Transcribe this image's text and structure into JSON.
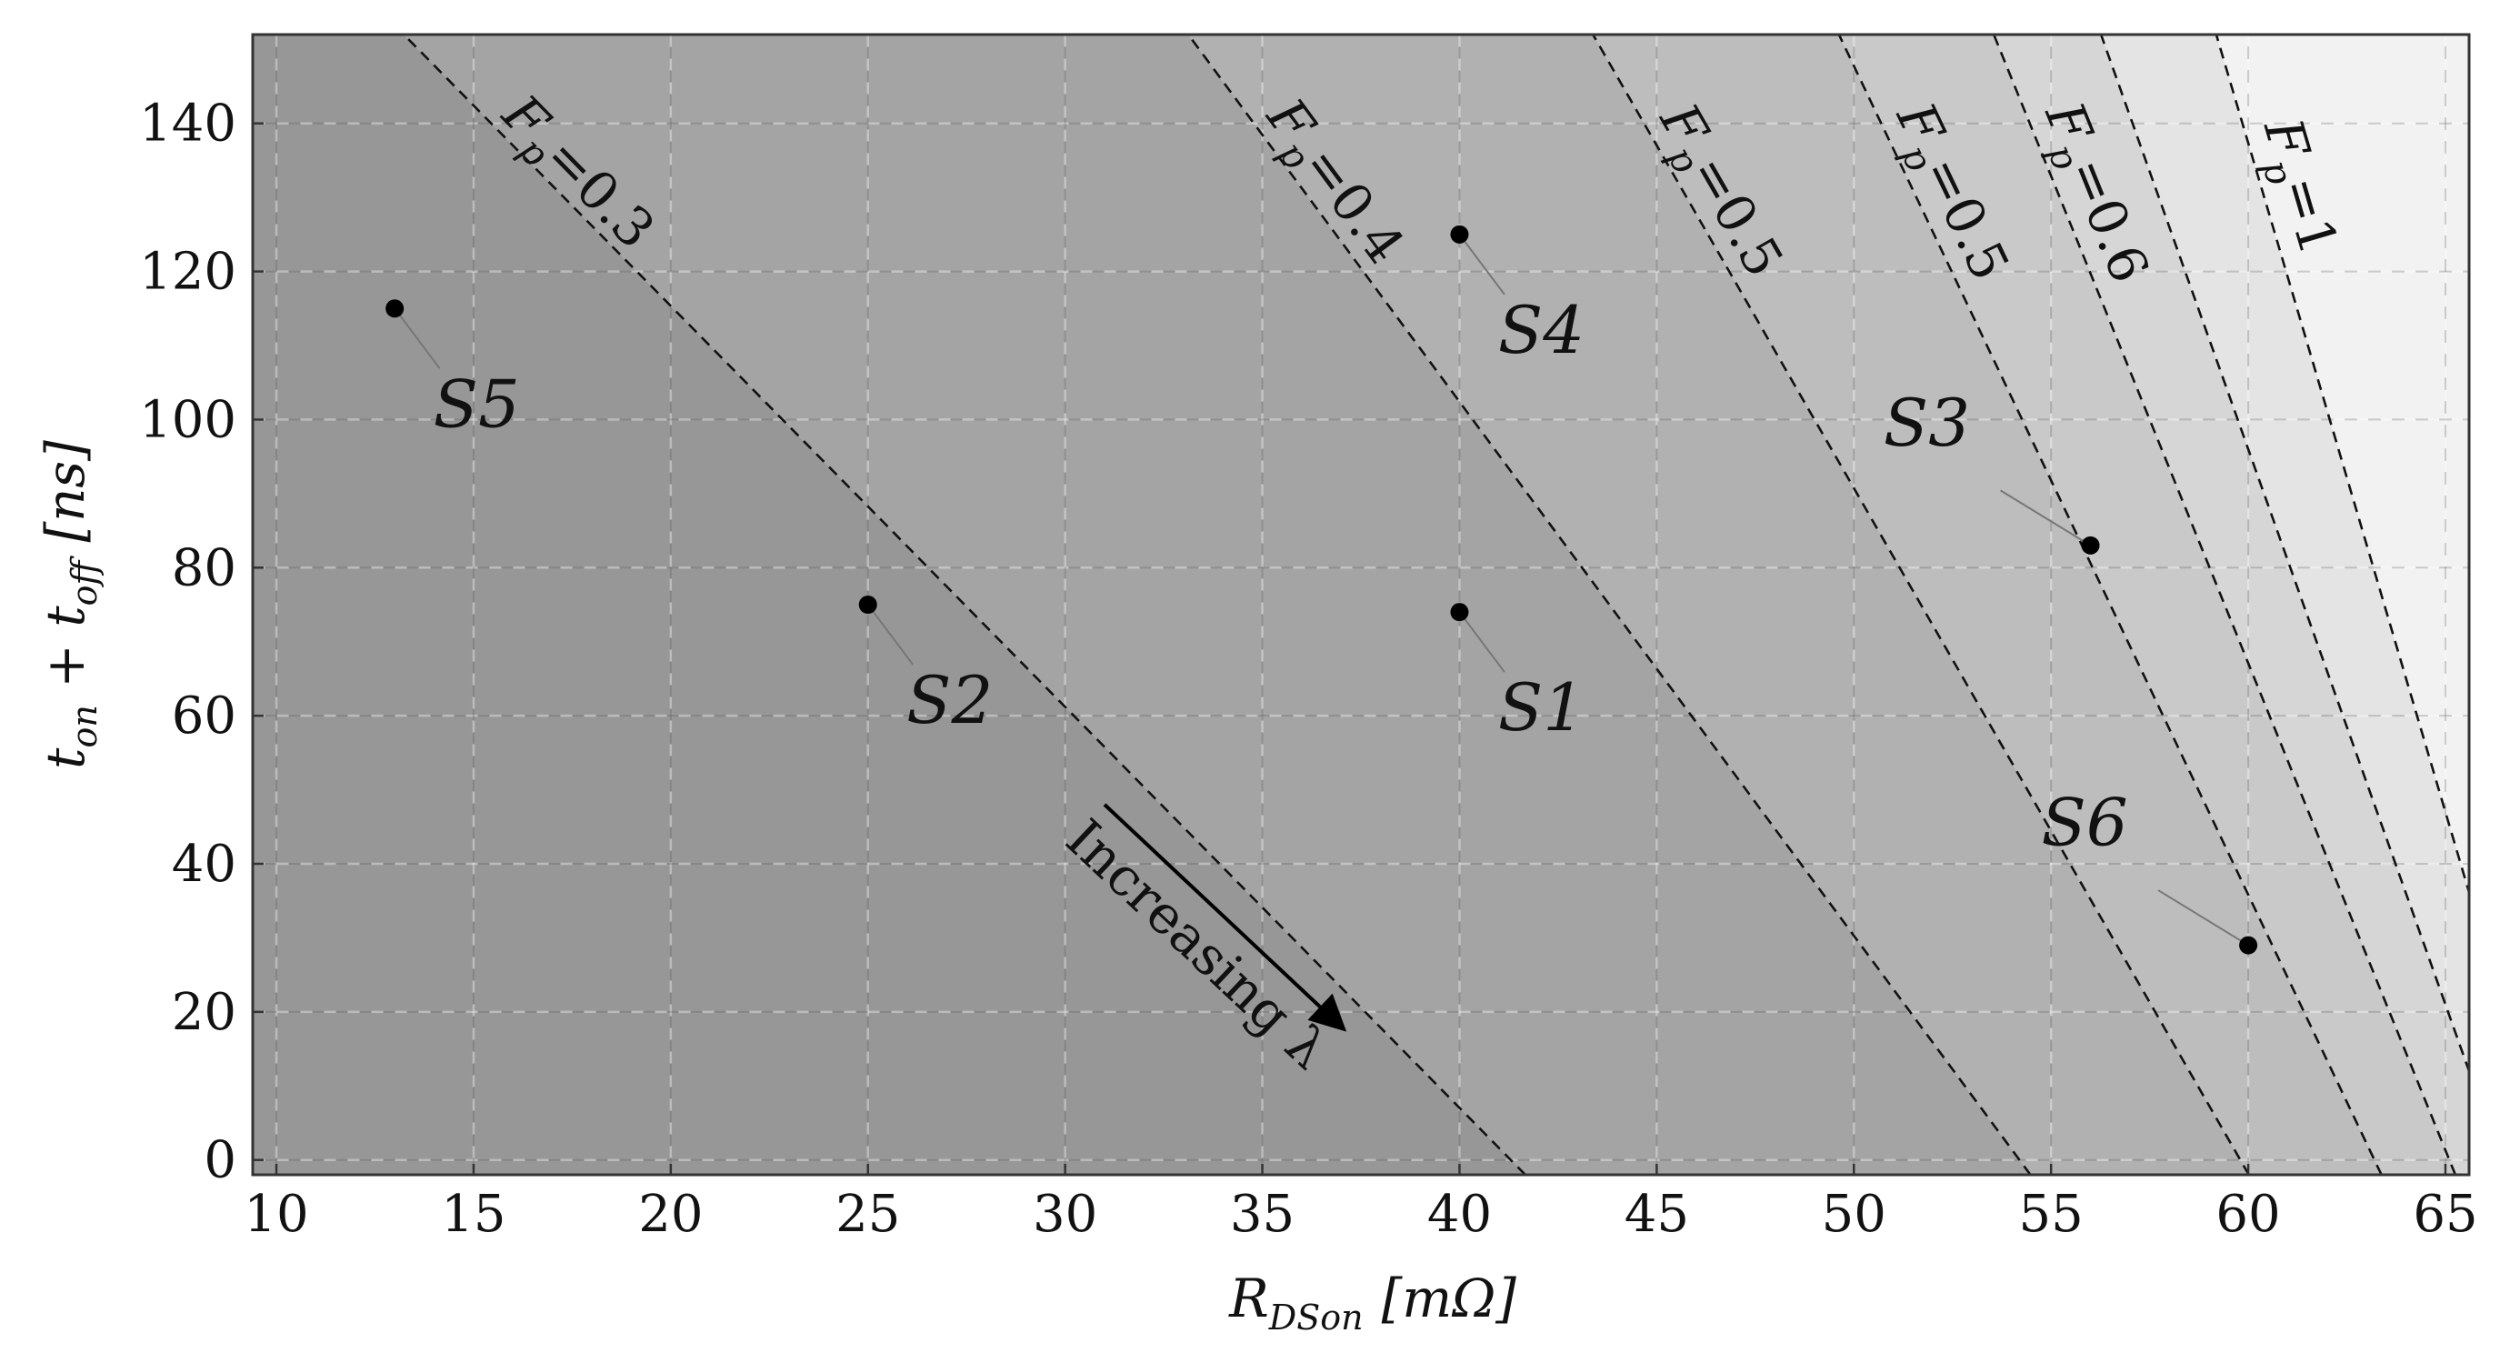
{
  "chart_data": {
    "type": "scatter",
    "x_label": {
      "main": "R",
      "sub": "DSon",
      "unit": "[mΩ]"
    },
    "y_label": {
      "t1": "t",
      "s1": "on",
      "plus": " + ",
      "t2": "t",
      "s2": "off",
      "unit": "[ns]"
    },
    "xlim": [
      9.4,
      65.6
    ],
    "ylim": [
      -2,
      152
    ],
    "x_ticks": [
      10,
      15,
      20,
      25,
      30,
      35,
      40,
      45,
      50,
      55,
      60,
      65
    ],
    "y_ticks": [
      0,
      20,
      40,
      60,
      80,
      100,
      120,
      140
    ],
    "grid": true,
    "points": [
      {
        "name": "S1",
        "x": 40,
        "y": 74
      },
      {
        "name": "S2",
        "x": 25,
        "y": 75
      },
      {
        "name": "S3",
        "x": 56,
        "y": 83
      },
      {
        "name": "S4",
        "x": 40,
        "y": 125
      },
      {
        "name": "S5",
        "x": 13,
        "y": 115
      },
      {
        "name": "S6",
        "x": 60,
        "y": 29
      }
    ],
    "contours": [
      {
        "label": "F",
        "sub": "p",
        "value": "=0.3",
        "x_at_bottom": 41.3,
        "x_at_top": 13.6
      },
      {
        "label": "F",
        "sub": "p",
        "value": "=0.4",
        "x_at_bottom": 54.2,
        "x_at_top": 33.4
      },
      {
        "label": "F",
        "sub": "p",
        "value": "=0.5",
        "x_at_bottom": 59.8,
        "x_at_top": 43.6
      },
      {
        "label": "F",
        "sub": "p",
        "value": "=0.5",
        "x_at_bottom": 63.2,
        "x_at_top": 49.8
      },
      {
        "label": "F",
        "sub": "p",
        "value": "=0.6",
        "x_at_bottom": 65.1,
        "x_at_top": 53.7
      },
      {
        "label": "",
        "sub": "",
        "value": "",
        "x_at_bottom": 66.4,
        "x_at_top": 56.4
      },
      {
        "label": "F",
        "sub": "p",
        "value": "=1",
        "x_at_bottom": 67.6,
        "x_at_top": 59.3
      }
    ],
    "region_colors": [
      "#979797",
      "#a4a4a4",
      "#b1b1b1",
      "#bdbdbd",
      "#c9c9c9",
      "#d6d6d6",
      "#e4e4e4",
      "#f2f2f2"
    ],
    "annotation": {
      "text": "Increasing λ",
      "arrow_from": [
        31,
        48
      ],
      "arrow_to": [
        37,
        18
      ]
    }
  }
}
